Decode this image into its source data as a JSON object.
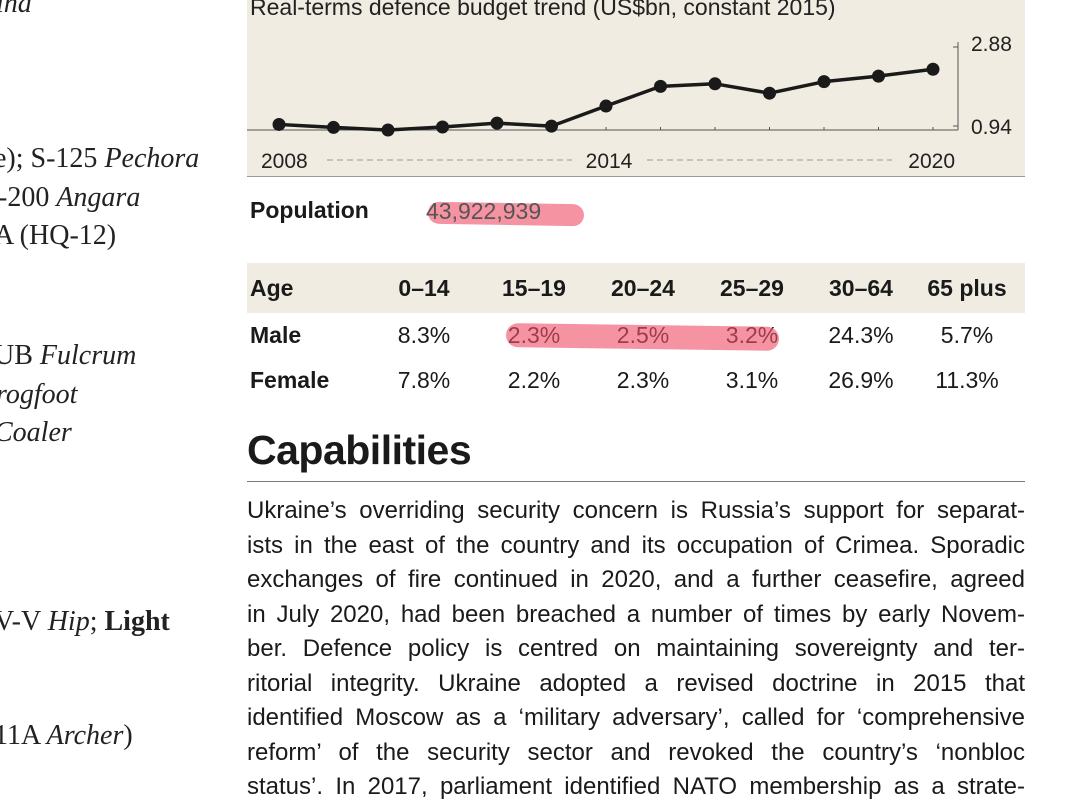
{
  "left_column": {
    "lines": [
      {
        "parts": [
          {
            "t": "ind",
            "s": "i"
          }
        ]
      },
      {
        "parts": [
          {
            "t": "e); S-125 ",
            "s": ""
          },
          {
            "t": "Pechora",
            "s": "i"
          }
        ]
      },
      {
        "parts": [
          {
            "t": "-200 ",
            "s": ""
          },
          {
            "t": "Angara",
            "s": "i"
          }
        ]
      },
      {
        "parts": [
          {
            "t": "A (HQ-12)",
            "s": ""
          }
        ]
      },
      {
        "parts": [
          {
            "t": "UB ",
            "s": ""
          },
          {
            "t": "Fulcrum",
            "s": "i"
          }
        ]
      },
      {
        "parts": [
          {
            "t": "rogfoot",
            "s": "i"
          }
        ]
      },
      {
        "parts": [
          {
            "t": "Coaler",
            "s": "i"
          }
        ]
      },
      {
        "parts": [
          {
            "t": "V-V ",
            "s": ""
          },
          {
            "t": "Hip",
            "s": "i"
          },
          {
            "t": "; ",
            "s": ""
          },
          {
            "t": "Light",
            "s": "b"
          }
        ]
      },
      {
        "parts": [
          {
            "t": "11A ",
            "s": ""
          },
          {
            "t": "Archer",
            "s": "i"
          },
          {
            "t": ")",
            "s": ""
          }
        ]
      }
    ]
  },
  "chart_data": {
    "type": "line",
    "title": "Real-terms defence budget trend (US$bn, constant 2015)",
    "x": [
      2008,
      2009,
      2010,
      2011,
      2012,
      2013,
      2014,
      2015,
      2016,
      2017,
      2018,
      2019,
      2020
    ],
    "series": [
      {
        "name": "Defence budget",
        "values": [
          1.07,
          1.0,
          0.94,
          1.01,
          1.1,
          1.03,
          1.5,
          1.96,
          2.02,
          1.8,
          2.07,
          2.2,
          2.36
        ]
      }
    ],
    "ylim": [
      0.94,
      2.88
    ],
    "y_tick_labels": [
      "2.88",
      "0.94"
    ],
    "x_tick_labels": [
      "2008",
      "2014",
      "2020"
    ],
    "xlabel": "",
    "ylabel": "",
    "colors": {
      "line": "#1a1a1a",
      "panel": "#f1ece1",
      "dash": "#999999"
    }
  },
  "population": {
    "label": "Population",
    "value": "43,922,939"
  },
  "age_table": {
    "headers": [
      "Age",
      "0–14",
      "15–19",
      "20–24",
      "25–29",
      "30–64",
      "65 plus"
    ],
    "rows": [
      {
        "label": "Male",
        "values": [
          "8.3%",
          "2.3%",
          "2.5%",
          "3.2%",
          "24.3%",
          "5.7%"
        ]
      },
      {
        "label": "Female",
        "values": [
          "7.8%",
          "2.2%",
          "2.3%",
          "3.1%",
          "26.9%",
          "11.3%"
        ]
      }
    ]
  },
  "capabilities": {
    "title": "Capabilities",
    "lines": [
      "Ukraine’s overriding security concern is Russia’s support for separat-",
      "ists in the east of the country and its occupation of Crimea. Sporadic",
      "exchanges of fire continued in 2020, and a further ceasefire, agreed",
      "in July 2020, had been breached a number of times by early Novem-",
      "ber. Defence policy is centred on maintaining sovereignty and ter-",
      "ritorial integrity. Ukraine adopted a revised doctrine in 2015 that",
      "identified Moscow as a ‘military adversary’, called for ‘comprehensive",
      "reform’ of the security sector and revoked the country’s ‘nonbloc",
      "status’. In 2017, parliament identified NATO membership as a strate-"
    ]
  },
  "highlight_color": "#f05069"
}
